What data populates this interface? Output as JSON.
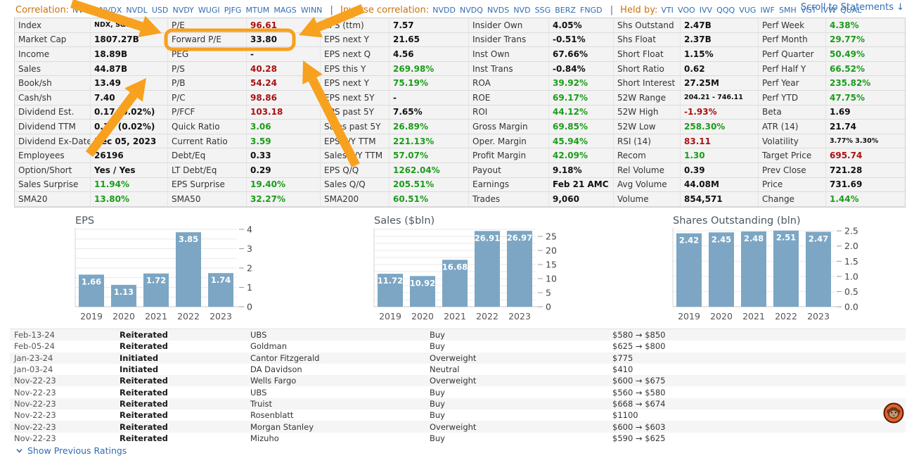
{
  "colors": {
    "green": "#1a9c1a",
    "red": "#aa1111",
    "link_blue": "#2f6cb3",
    "label_orange": "#c9720a",
    "arrow_orange": "#f7a11f",
    "bar_blue": "#7ca6c4"
  },
  "header": {
    "correlation_label": "Correlation:",
    "correlation_tickers": [
      "NVDU",
      "NVDX",
      "NVDL",
      "USD",
      "NVDY",
      "WUGI",
      "PJFG",
      "MTUM",
      "MAGS",
      "WINN"
    ],
    "separator": "|",
    "inverse_label": "Inverse correlation:",
    "inverse_tickers": [
      "NVDD",
      "NVDQ",
      "NVDS",
      "NVD",
      "SSG",
      "BERZ",
      "FNGD"
    ],
    "heldby_label": "Held by:",
    "heldby_tickers": [
      "VTI",
      "VOO",
      "IVV",
      "QQQ",
      "VUG",
      "IWF",
      "SMH",
      "VGT",
      "IVW",
      "QUAL"
    ],
    "scroll_link": "Scroll to Statements ↓"
  },
  "snapshot": {
    "columns": [
      [
        {
          "label": "Index",
          "value": "NDX, S&P 500",
          "small": true
        },
        {
          "label": "Market Cap",
          "value": "1807.27B"
        },
        {
          "label": "Income",
          "value": "18.89B"
        },
        {
          "label": "Sales",
          "value": "44.87B"
        },
        {
          "label": "Book/sh",
          "value": "13.49"
        },
        {
          "label": "Cash/sh",
          "value": "7.40"
        },
        {
          "label": "Dividend Est.",
          "value": "0.17 (0.02%)"
        },
        {
          "label": "Dividend TTM",
          "value": "0.16 (0.02%)"
        },
        {
          "label": "Dividend Ex-Date",
          "value": "Dec 05, 2023"
        },
        {
          "label": "Employees",
          "value": "26196"
        },
        {
          "label": "Option/Short",
          "value": "Yes / Yes"
        },
        {
          "label": "Sales Surprise",
          "value": "11.94%",
          "color": "green"
        },
        {
          "label": "SMA20",
          "value": "13.80%",
          "color": "green"
        }
      ],
      [
        {
          "label": "P/E",
          "value": "96.61",
          "color": "red"
        },
        {
          "label": "Forward P/E",
          "value": "33.80"
        },
        {
          "label": "PEG",
          "value": "-"
        },
        {
          "label": "P/S",
          "value": "40.28",
          "color": "red"
        },
        {
          "label": "P/B",
          "value": "54.24",
          "color": "red"
        },
        {
          "label": "P/C",
          "value": "98.86",
          "color": "red"
        },
        {
          "label": "P/FCF",
          "value": "103.18",
          "color": "red"
        },
        {
          "label": "Quick Ratio",
          "value": "3.06",
          "color": "green"
        },
        {
          "label": "Current Ratio",
          "value": "3.59",
          "color": "green"
        },
        {
          "label": "Debt/Eq",
          "value": "0.33"
        },
        {
          "label": "LT Debt/Eq",
          "value": "0.29"
        },
        {
          "label": "EPS Surprise",
          "value": "19.40%",
          "color": "green"
        },
        {
          "label": "SMA50",
          "value": "32.27%",
          "color": "green"
        }
      ],
      [
        {
          "label": "EPS (ttm)",
          "value": "7.57"
        },
        {
          "label": "EPS next Y",
          "value": "21.65"
        },
        {
          "label": "EPS next Q",
          "value": "4.56"
        },
        {
          "label": "EPS this Y",
          "value": "269.98%",
          "color": "green"
        },
        {
          "label": "EPS next Y",
          "value": "75.19%",
          "color": "green"
        },
        {
          "label": "EPS next 5Y",
          "value": "-"
        },
        {
          "label": "EPS past 5Y",
          "value": "7.65%"
        },
        {
          "label": "Sales past 5Y",
          "value": "26.89%",
          "color": "green"
        },
        {
          "label": "EPS Y/Y TTM",
          "value": "221.13%",
          "color": "green"
        },
        {
          "label": "Sales Y/Y TTM",
          "value": "57.07%",
          "color": "green"
        },
        {
          "label": "EPS Q/Q",
          "value": "1262.04%",
          "color": "green"
        },
        {
          "label": "Sales Q/Q",
          "value": "205.51%",
          "color": "green"
        },
        {
          "label": "SMA200",
          "value": "60.51%",
          "color": "green"
        }
      ],
      [
        {
          "label": "Insider Own",
          "value": "4.05%"
        },
        {
          "label": "Insider Trans",
          "value": "-0.51%"
        },
        {
          "label": "Inst Own",
          "value": "67.66%"
        },
        {
          "label": "Inst Trans",
          "value": "-0.84%"
        },
        {
          "label": "ROA",
          "value": "39.92%",
          "color": "green"
        },
        {
          "label": "ROE",
          "value": "69.17%",
          "color": "green"
        },
        {
          "label": "ROI",
          "value": "44.12%",
          "color": "green"
        },
        {
          "label": "Gross Margin",
          "value": "69.85%",
          "color": "green"
        },
        {
          "label": "Oper. Margin",
          "value": "45.94%",
          "color": "green"
        },
        {
          "label": "Profit Margin",
          "value": "42.09%",
          "color": "green"
        },
        {
          "label": "Payout",
          "value": "9.18%"
        },
        {
          "label": "Earnings",
          "value": "Feb 21 AMC"
        },
        {
          "label": "Trades",
          "value": "9,060"
        }
      ],
      [
        {
          "label": "Shs Outstand",
          "value": "2.47B"
        },
        {
          "label": "Shs Float",
          "value": "2.37B"
        },
        {
          "label": "Short Float",
          "value": "1.15%"
        },
        {
          "label": "Short Ratio",
          "value": "0.62"
        },
        {
          "label": "Short Interest",
          "value": "27.25M"
        },
        {
          "label": "52W Range",
          "value": "204.21 - 746.11",
          "small": true
        },
        {
          "label": "52W High",
          "value": "-1.93%",
          "color": "red"
        },
        {
          "label": "52W Low",
          "value": "258.30%",
          "color": "green"
        },
        {
          "label": "RSI (14)",
          "value": "83.11",
          "color": "red"
        },
        {
          "label": "Recom",
          "value": "1.30",
          "color": "green"
        },
        {
          "label": "Rel Volume",
          "value": "0.39"
        },
        {
          "label": "Avg Volume",
          "value": "44.08M"
        },
        {
          "label": "Volume",
          "value": "854,571"
        }
      ],
      [
        {
          "label": "Perf Week",
          "value": "4.38%",
          "color": "green"
        },
        {
          "label": "Perf Month",
          "value": "29.77%",
          "color": "green"
        },
        {
          "label": "Perf Quarter",
          "value": "50.49%",
          "color": "green"
        },
        {
          "label": "Perf Half Y",
          "value": "66.52%",
          "color": "green"
        },
        {
          "label": "Perf Year",
          "value": "235.82%",
          "color": "green"
        },
        {
          "label": "Perf YTD",
          "value": "47.75%",
          "color": "green"
        },
        {
          "label": "Beta",
          "value": "1.69"
        },
        {
          "label": "ATR (14)",
          "value": "21.74"
        },
        {
          "label": "Volatility",
          "value": "3.77% 3.30%",
          "small": true
        },
        {
          "label": "Target Price",
          "value": "695.74",
          "color": "red"
        },
        {
          "label": "Prev Close",
          "value": "721.28"
        },
        {
          "label": "Price",
          "value": "731.69"
        },
        {
          "label": "Change",
          "value": "1.44%",
          "color": "green"
        }
      ]
    ]
  },
  "chart_data": [
    {
      "type": "bar",
      "title": "EPS",
      "categories": [
        "2019",
        "2020",
        "2021",
        "2022",
        "2023"
      ],
      "values": [
        1.66,
        1.13,
        1.72,
        3.85,
        1.74
      ],
      "labels": [
        "1.66",
        "1.13",
        "1.72",
        "3.85",
        "1.74"
      ],
      "ylim": [
        0,
        4
      ],
      "yticks": [
        0,
        1,
        2,
        3,
        4
      ],
      "ytick_labels": [
        "0",
        "1",
        "2",
        "3",
        "4"
      ],
      "minor_step": 0.5,
      "grid": true,
      "axis_side": "right",
      "xlabel": "",
      "ylabel": ""
    },
    {
      "type": "bar",
      "title": "Sales ($bln)",
      "categories": [
        "2019",
        "2020",
        "2021",
        "2022",
        "2023"
      ],
      "values": [
        11.72,
        10.92,
        16.68,
        26.91,
        26.97
      ],
      "labels": [
        "11.72",
        "10.92",
        "16.68",
        "26.91",
        "26.97"
      ],
      "ylim": [
        0,
        27.5
      ],
      "yticks": [
        0,
        5,
        10,
        15,
        20,
        25
      ],
      "ytick_labels": [
        "0",
        "5",
        "10",
        "15",
        "20",
        "25"
      ],
      "minor_step": 2.5,
      "grid": true,
      "axis_side": "right",
      "xlabel": "",
      "ylabel": ""
    },
    {
      "type": "bar",
      "title": "Shares Outstanding (bln)",
      "categories": [
        "2019",
        "2020",
        "2021",
        "2022",
        "2023"
      ],
      "values": [
        2.42,
        2.45,
        2.48,
        2.51,
        2.47
      ],
      "labels": [
        "2.42",
        "2.45",
        "2.48",
        "2.51",
        "2.47"
      ],
      "ylim": [
        0,
        2.55
      ],
      "yticks": [
        0,
        0.5,
        1,
        1.5,
        2,
        2.5
      ],
      "ytick_labels": [
        "0.0",
        "0.5",
        "1.0",
        "1.5",
        "2.0",
        "2.5"
      ],
      "minor_step": 0.5,
      "grid": true,
      "axis_side": "right",
      "xlabel": "",
      "ylabel": ""
    }
  ],
  "ratings": {
    "rows": [
      {
        "date": "Feb-13-24",
        "action": "Reiterated",
        "analyst": "UBS",
        "rating": "Buy",
        "target": "$580 → $850"
      },
      {
        "date": "Feb-05-24",
        "action": "Reiterated",
        "analyst": "Goldman",
        "rating": "Buy",
        "target": "$625 → $800"
      },
      {
        "date": "Jan-23-24",
        "action": "Initiated",
        "analyst": "Cantor Fitzgerald",
        "rating": "Overweight",
        "target": "$775"
      },
      {
        "date": "Jan-03-24",
        "action": "Initiated",
        "analyst": "DA Davidson",
        "rating": "Neutral",
        "target": "$410"
      },
      {
        "date": "Nov-22-23",
        "action": "Reiterated",
        "analyst": "Wells Fargo",
        "rating": "Overweight",
        "target": "$600 → $675"
      },
      {
        "date": "Nov-22-23",
        "action": "Reiterated",
        "analyst": "UBS",
        "rating": "Buy",
        "target": "$560 → $580"
      },
      {
        "date": "Nov-22-23",
        "action": "Reiterated",
        "analyst": "Truist",
        "rating": "Buy",
        "target": "$668 → $674"
      },
      {
        "date": "Nov-22-23",
        "action": "Reiterated",
        "analyst": "Rosenblatt",
        "rating": "Buy",
        "target": "$1100"
      },
      {
        "date": "Nov-22-23",
        "action": "Reiterated",
        "analyst": "Morgan Stanley",
        "rating": "Overweight",
        "target": "$600 → $603"
      },
      {
        "date": "Nov-22-23",
        "action": "Reiterated",
        "analyst": "Mizuho",
        "rating": "Buy",
        "target": "$590 → $625"
      }
    ],
    "show_previous_label": "Show Previous Ratings"
  }
}
